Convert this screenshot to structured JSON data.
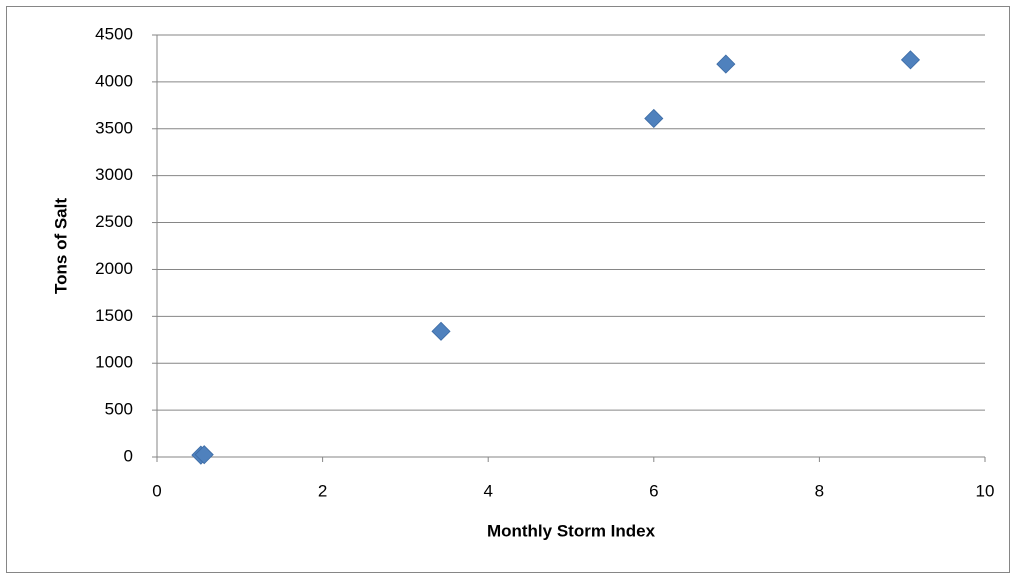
{
  "chart_data": {
    "type": "scatter",
    "x_label": "Monthly Storm Index",
    "y_label": "Tons of Salt",
    "series": [
      {
        "color": "#4f81bd",
        "x": [
          0.53,
          0.57,
          3.43,
          6.0,
          6.87,
          9.1
        ],
        "values": [
          20,
          25,
          1340,
          3610,
          4190,
          4235
        ]
      }
    ],
    "xlim": [
      0,
      10
    ],
    "xticks": [
      0,
      2,
      4,
      6,
      8,
      10
    ],
    "ylim": [
      0,
      4500
    ],
    "yticks": [
      0,
      500,
      1000,
      1500,
      2000,
      2500,
      3000,
      3500,
      4000,
      4500
    ],
    "grid": true
  }
}
